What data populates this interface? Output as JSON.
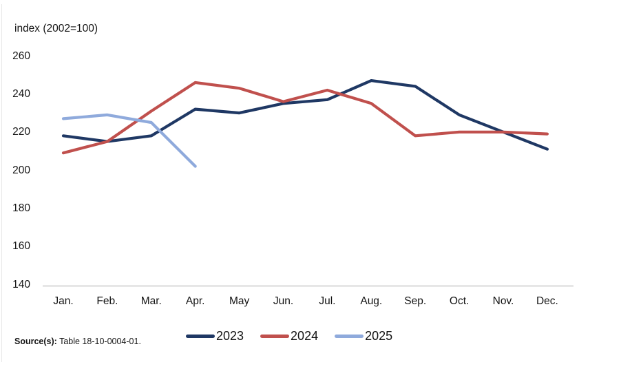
{
  "figure": {
    "axis_title": "index (2002=100)",
    "source_label": "Source(s):",
    "source_text": " Table 18-10-0004-01."
  },
  "chart_data": {
    "type": "line",
    "title": "",
    "ylabel": "index (2002=100)",
    "categories": [
      "Jan.",
      "Feb.",
      "Mar.",
      "Apr.",
      "May",
      "Jun.",
      "Jul.",
      "Aug.",
      "Sep.",
      "Oct.",
      "Nov.",
      "Dec."
    ],
    "y_ticks": [
      140,
      160,
      180,
      200,
      220,
      240,
      260
    ],
    "ylim": [
      140,
      260
    ],
    "grid": false,
    "legend_position": "bottom",
    "axis_line_color": "#d9d9d9",
    "series": [
      {
        "name": "2023",
        "color": "#1f3864",
        "values": [
          218,
          215,
          218,
          232,
          230,
          235,
          237,
          247,
          244,
          229,
          220,
          211
        ]
      },
      {
        "name": "2024",
        "color": "#c0504d",
        "values": [
          209,
          215,
          231,
          246,
          243,
          236,
          242,
          235,
          218,
          220,
          220,
          219
        ]
      },
      {
        "name": "2025",
        "color": "#8faadc",
        "values": [
          227,
          229,
          225,
          202,
          null,
          null,
          null,
          null,
          null,
          null,
          null,
          null
        ]
      }
    ],
    "source": "Source(s): Table 18-10-0004-01."
  }
}
